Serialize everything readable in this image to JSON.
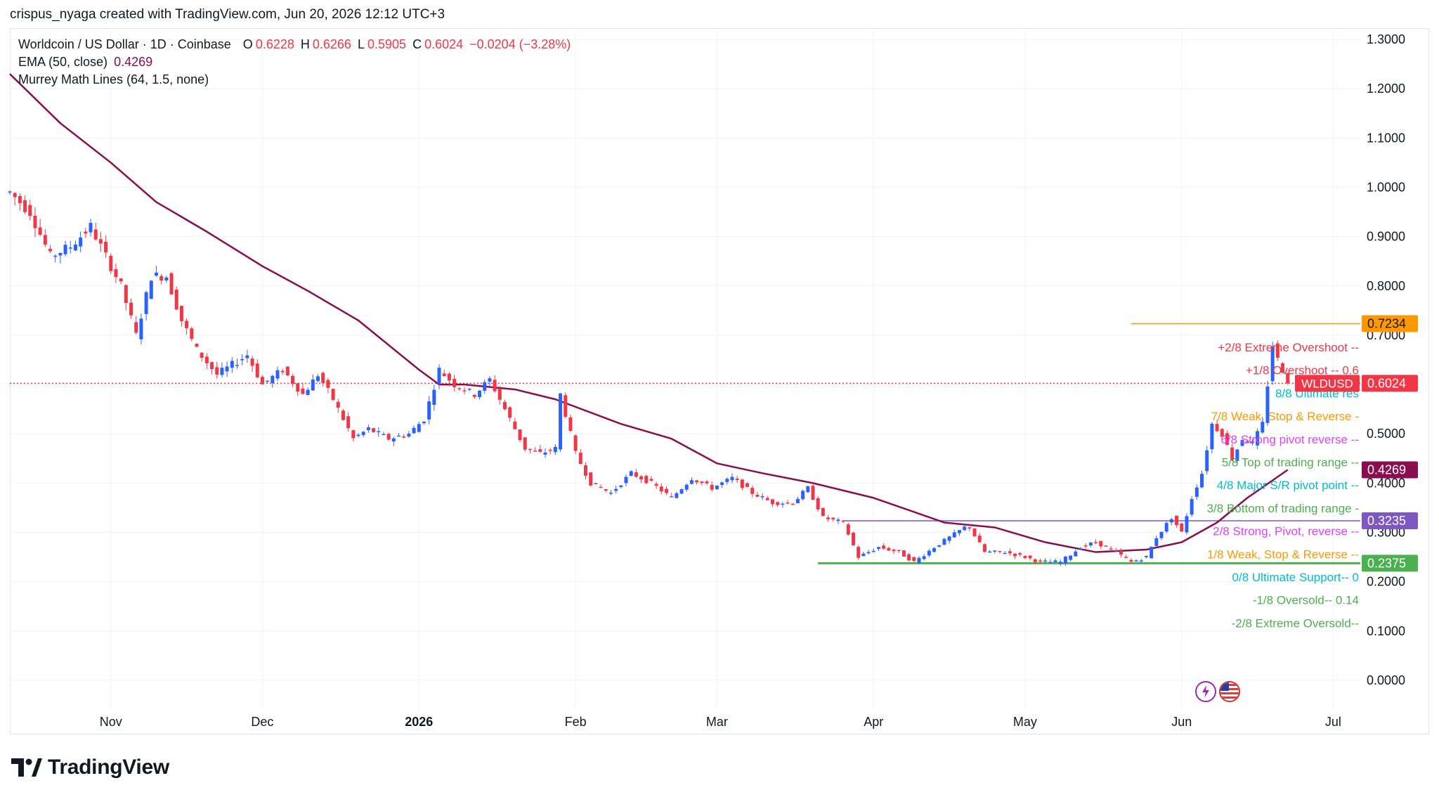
{
  "attribution": "crispus_nyaga created with TradingView.com, Jun 20, 2026 12:12 UTC+3",
  "legend": {
    "symbol": "Worldcoin / US Dollar · 1D · Coinbase",
    "o_label": "O",
    "o_value": "0.6228",
    "h_label": "H",
    "h_value": "0.6266",
    "l_label": "L",
    "l_value": "0.5905",
    "c_label": "C",
    "c_value": "0.6024",
    "change": "−0.0204 (−3.28%)",
    "ema_label": "EMA (50, close)",
    "ema_value": "0.4269",
    "murrey_label": "Murrey Math Lines (64, 1.5, none)"
  },
  "brand": {
    "name": "TradingView"
  },
  "icons": {
    "lightning": "lightning-icon",
    "flag": "us-flag-icon"
  },
  "colors": {
    "up": "#2962ff",
    "down": "#f23645",
    "ema": "#880e4f",
    "grid": "#f0f3fa"
  },
  "chart_data": {
    "type": "candlestick",
    "title": "Worldcoin / US Dollar · 1D · Coinbase",
    "ylim": [
      -0.05,
      1.35
    ],
    "y_ticks": [
      "1.3000",
      "1.2000",
      "1.1000",
      "1.0000",
      "0.9000",
      "0.8000",
      "0.7000",
      "0.6000",
      "0.5000",
      "0.4000",
      "0.3000",
      "0.2000",
      "0.1000",
      "0.0000"
    ],
    "x_ticks": [
      {
        "label": "Nov",
        "date": "2025-11-01",
        "bold": false
      },
      {
        "label": "Dec",
        "date": "2025-12-01",
        "bold": false
      },
      {
        "label": "2026",
        "date": "2026-01-01",
        "bold": true
      },
      {
        "label": "Feb",
        "date": "2026-02-01",
        "bold": false
      },
      {
        "label": "Mar",
        "date": "2026-03-01",
        "bold": false
      },
      {
        "label": "Apr",
        "date": "2026-04-01",
        "bold": false
      },
      {
        "label": "May",
        "date": "2026-05-01",
        "bold": false
      },
      {
        "label": "Jun",
        "date": "2026-06-01",
        "bold": false
      },
      {
        "label": "Jul",
        "date": "2026-07-01",
        "bold": false
      }
    ],
    "x_range": [
      "2025-10-12",
      "2026-07-20"
    ],
    "price_path": [
      [
        "2025-10-12",
        0.99
      ],
      [
        "2025-10-16",
        0.95
      ],
      [
        "2025-10-20",
        0.86
      ],
      [
        "2025-10-24",
        0.88
      ],
      [
        "2025-10-28",
        0.92
      ],
      [
        "2025-10-31",
        0.86
      ],
      [
        "2025-11-03",
        0.8
      ],
      [
        "2025-11-06",
        0.7
      ],
      [
        "2025-11-09",
        0.82
      ],
      [
        "2025-11-12",
        0.82
      ],
      [
        "2025-11-15",
        0.73
      ],
      [
        "2025-11-18",
        0.67
      ],
      [
        "2025-11-22",
        0.62
      ],
      [
        "2025-11-25",
        0.64
      ],
      [
        "2025-11-28",
        0.66
      ],
      [
        "2025-12-01",
        0.6
      ],
      [
        "2025-12-05",
        0.63
      ],
      [
        "2025-12-09",
        0.58
      ],
      [
        "2025-12-12",
        0.62
      ],
      [
        "2025-12-15",
        0.57
      ],
      [
        "2025-12-19",
        0.49
      ],
      [
        "2025-12-22",
        0.51
      ],
      [
        "2025-12-26",
        0.49
      ],
      [
        "2025-12-30",
        0.5
      ],
      [
        "2026-01-02",
        0.53
      ],
      [
        "2026-01-05",
        0.63
      ],
      [
        "2026-01-08",
        0.6
      ],
      [
        "2026-01-12",
        0.58
      ],
      [
        "2026-01-15",
        0.61
      ],
      [
        "2026-01-19",
        0.53
      ],
      [
        "2026-01-22",
        0.47
      ],
      [
        "2026-01-25",
        0.46
      ],
      [
        "2026-01-28",
        0.47
      ],
      [
        "2026-01-29",
        0.58
      ],
      [
        "2026-02-01",
        0.46
      ],
      [
        "2026-02-04",
        0.4
      ],
      [
        "2026-02-08",
        0.38
      ],
      [
        "2026-02-12",
        0.42
      ],
      [
        "2026-02-16",
        0.4
      ],
      [
        "2026-02-20",
        0.37
      ],
      [
        "2026-02-24",
        0.41
      ],
      [
        "2026-02-28",
        0.39
      ],
      [
        "2026-03-04",
        0.41
      ],
      [
        "2026-03-08",
        0.38
      ],
      [
        "2026-03-12",
        0.36
      ],
      [
        "2026-03-16",
        0.36
      ],
      [
        "2026-03-19",
        0.39
      ],
      [
        "2026-03-22",
        0.33
      ],
      [
        "2026-03-26",
        0.32
      ],
      [
        "2026-03-29",
        0.25
      ],
      [
        "2026-04-02",
        0.27
      ],
      [
        "2026-04-06",
        0.26
      ],
      [
        "2026-04-09",
        0.24
      ],
      [
        "2026-04-13",
        0.27
      ],
      [
        "2026-04-16",
        0.29
      ],
      [
        "2026-04-19",
        0.31
      ],
      [
        "2026-04-20",
        0.31
      ],
      [
        "2026-04-23",
        0.26
      ],
      [
        "2026-04-27",
        0.26
      ],
      [
        "2026-05-01",
        0.25
      ],
      [
        "2026-05-04",
        0.24
      ],
      [
        "2026-05-08",
        0.24
      ],
      [
        "2026-05-12",
        0.27
      ],
      [
        "2026-05-15",
        0.28
      ],
      [
        "2026-05-19",
        0.26
      ],
      [
        "2026-05-22",
        0.24
      ],
      [
        "2026-05-25",
        0.25
      ],
      [
        "2026-05-27",
        0.29
      ],
      [
        "2026-05-30",
        0.33
      ],
      [
        "2026-06-01",
        0.3
      ],
      [
        "2026-06-03",
        0.37
      ],
      [
        "2026-06-05",
        0.42
      ],
      [
        "2026-06-07",
        0.52
      ],
      [
        "2026-06-09",
        0.5
      ],
      [
        "2026-06-11",
        0.45
      ],
      [
        "2026-06-13",
        0.49
      ],
      [
        "2026-06-15",
        0.48
      ],
      [
        "2026-06-17",
        0.52
      ],
      [
        "2026-06-18",
        0.6
      ],
      [
        "2026-06-19",
        0.68
      ],
      [
        "2026-06-20",
        0.65
      ],
      [
        "2026-06-21",
        0.63
      ],
      [
        "2026-06-22",
        0.6024
      ]
    ],
    "ema_path": [
      [
        "2025-10-12",
        1.23
      ],
      [
        "2025-10-22",
        1.13
      ],
      [
        "2025-11-01",
        1.05
      ],
      [
        "2025-11-10",
        0.97
      ],
      [
        "2025-11-20",
        0.91
      ],
      [
        "2025-12-01",
        0.84
      ],
      [
        "2025-12-10",
        0.79
      ],
      [
        "2025-12-20",
        0.73
      ],
      [
        "2026-01-01",
        0.63
      ],
      [
        "2026-01-05",
        0.6
      ],
      [
        "2026-01-10",
        0.6
      ],
      [
        "2026-01-20",
        0.59
      ],
      [
        "2026-01-28",
        0.57
      ],
      [
        "2026-02-10",
        0.52
      ],
      [
        "2026-02-20",
        0.49
      ],
      [
        "2026-03-01",
        0.44
      ],
      [
        "2026-03-10",
        0.42
      ],
      [
        "2026-03-20",
        0.4
      ],
      [
        "2026-04-01",
        0.37
      ],
      [
        "2026-04-15",
        0.32
      ],
      [
        "2026-04-25",
        0.31
      ],
      [
        "2026-05-05",
        0.28
      ],
      [
        "2026-05-15",
        0.26
      ],
      [
        "2026-05-25",
        0.265
      ],
      [
        "2026-06-01",
        0.28
      ],
      [
        "2026-06-08",
        0.32
      ],
      [
        "2026-06-14",
        0.37
      ],
      [
        "2026-06-22",
        0.4269
      ]
    ],
    "horizontal_lines": [
      {
        "value": 0.7234,
        "color": "#ff9800",
        "from": "2026-05-22",
        "to": "2026-07-09"
      },
      {
        "value": 0.3235,
        "color": "#7e57c2",
        "from": "2026-03-26",
        "to": "2026-07-09"
      },
      {
        "value": 0.2375,
        "color": "#4caf50",
        "from": "2026-03-21",
        "to": "2026-07-09"
      },
      {
        "value": 0.6024,
        "color": "#f23645",
        "from": "2025-10-12",
        "to": "2026-07-09",
        "dotted": true
      }
    ],
    "price_labels": [
      {
        "value": "0.7234",
        "bg": "#ff9800",
        "color": "#131722"
      },
      {
        "value": "0.6024",
        "bg": "#f23645",
        "color": "#ffffff",
        "tag": "WLDUSD"
      },
      {
        "value": "0.4269",
        "bg": "#880e4f",
        "color": "#ffffff"
      },
      {
        "value": "0.3235",
        "bg": "#7e57c2",
        "color": "#ffffff"
      },
      {
        "value": "0.2375",
        "bg": "#4caf50",
        "color": "#ffffff"
      }
    ],
    "murrey_labels": [
      {
        "text": "+2/8 Extreme Overshoot --",
        "color": "#f23645"
      },
      {
        "text": "+1/8 Overshoot -- 0.6",
        "color": "#f23645"
      },
      {
        "text": "8/8 Ultimate res",
        "color": "#00bcd4"
      },
      {
        "text": "7/8 Weak, Stop & Reverse -",
        "color": "#ff9800"
      },
      {
        "text": "6/8 Strong pivot reverse --",
        "color": "#e040fb"
      },
      {
        "text": "5/8 Top of trading range --",
        "color": "#4caf50"
      },
      {
        "text": "4/8 Major S/R pivot point --",
        "color": "#00bcd4"
      },
      {
        "text": "3/8 Bottom of trading range -",
        "color": "#4caf50"
      },
      {
        "text": "2/8 Strong, Pivot, reverse --",
        "color": "#e040fb"
      },
      {
        "text": "1/8 Weak, Stop & Reverse --",
        "color": "#ff9800"
      },
      {
        "text": "0/8 Ultimate Support-- 0",
        "color": "#00bcd4"
      },
      {
        "text": "-1/8 Oversold-- 0.14",
        "color": "#4caf50"
      },
      {
        "text": "-2/8 Extreme Oversold--",
        "color": "#4caf50"
      }
    ]
  }
}
